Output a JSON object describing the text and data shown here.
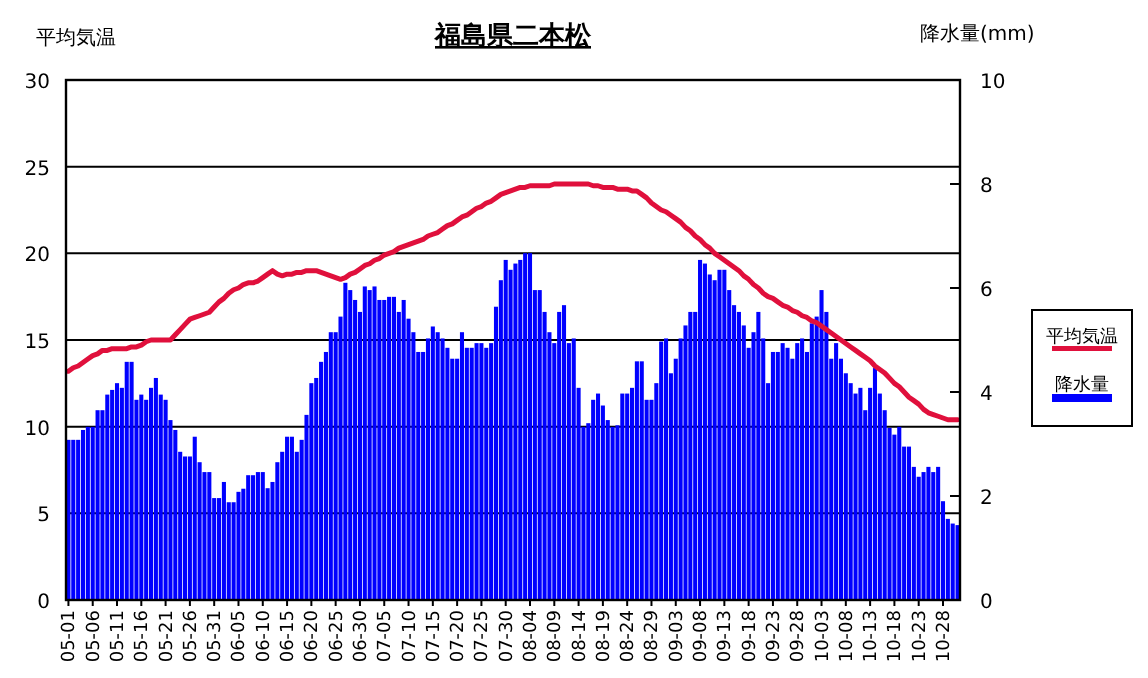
{
  "chart_data": {
    "type": "bar",
    "title": "福島県二本松",
    "ylabel": "平均気温",
    "y2label": "降水量(mm)",
    "categories": [
      "05-01",
      null,
      null,
      null,
      null,
      "05-06",
      null,
      null,
      null,
      null,
      "05-11",
      null,
      null,
      null,
      null,
      "05-16",
      null,
      null,
      null,
      null,
      "05-21",
      null,
      null,
      null,
      null,
      "05-26",
      null,
      null,
      null,
      null,
      "05-31",
      null,
      null,
      null,
      null,
      "06-05",
      null,
      null,
      null,
      null,
      "06-10",
      null,
      null,
      null,
      null,
      "06-15",
      null,
      null,
      null,
      null,
      "06-20",
      null,
      null,
      null,
      null,
      "06-25",
      null,
      null,
      null,
      null,
      "06-30",
      null,
      null,
      null,
      null,
      "07-05",
      null,
      null,
      null,
      null,
      "07-10",
      null,
      null,
      null,
      null,
      "07-15",
      null,
      null,
      null,
      null,
      "07-20",
      null,
      null,
      null,
      null,
      "07-25",
      null,
      null,
      null,
      null,
      "07-30",
      null,
      null,
      null,
      null,
      "08-04",
      null,
      null,
      null,
      null,
      "08-09",
      null,
      null,
      null,
      null,
      "08-14",
      null,
      null,
      null,
      null,
      "08-19",
      null,
      null,
      null,
      null,
      "08-24",
      null,
      null,
      null,
      null,
      "08-29",
      null,
      null,
      null,
      null,
      "09-03",
      null,
      null,
      null,
      null,
      "09-08",
      null,
      null,
      null,
      null,
      "09-13",
      null,
      null,
      null,
      null,
      "09-18",
      null,
      null,
      null,
      null,
      "09-23",
      null,
      null,
      null,
      null,
      "09-28",
      null,
      null,
      null,
      null,
      "10-03",
      null,
      null,
      null,
      null,
      "10-08",
      null,
      null,
      null,
      null,
      "10-13",
      null,
      null,
      null,
      null,
      "10-18",
      null,
      null,
      null,
      null,
      "10-23",
      null,
      null,
      null,
      null,
      "10-28",
      null,
      null,
      null
    ],
    "series": [
      {
        "name": "平均気温",
        "type": "line",
        "color": "#e0103c",
        "values": [
          13.2,
          13.4,
          13.5,
          13.7,
          13.9,
          14.1,
          14.2,
          14.4,
          14.4,
          14.5,
          14.5,
          14.5,
          14.5,
          14.6,
          14.6,
          14.7,
          14.9,
          15.0,
          15.0,
          15.0,
          15.0,
          15.0,
          15.3,
          15.6,
          15.9,
          16.2,
          16.3,
          16.4,
          16.5,
          16.6,
          16.9,
          17.2,
          17.4,
          17.7,
          17.9,
          18.0,
          18.2,
          18.3,
          18.3,
          18.4,
          18.6,
          18.8,
          19.0,
          18.8,
          18.7,
          18.8,
          18.8,
          18.9,
          18.9,
          19.0,
          19.0,
          19.0,
          18.9,
          18.8,
          18.7,
          18.6,
          18.5,
          18.6,
          18.8,
          18.9,
          19.1,
          19.3,
          19.4,
          19.6,
          19.7,
          19.9,
          20.0,
          20.1,
          20.3,
          20.4,
          20.5,
          20.6,
          20.7,
          20.8,
          21.0,
          21.1,
          21.2,
          21.4,
          21.6,
          21.7,
          21.9,
          22.1,
          22.2,
          22.4,
          22.6,
          22.7,
          22.9,
          23.0,
          23.2,
          23.4,
          23.5,
          23.6,
          23.7,
          23.8,
          23.8,
          23.9,
          23.9,
          23.9,
          23.9,
          23.9,
          24.0,
          24.0,
          24.0,
          24.0,
          24.0,
          24.0,
          24.0,
          24.0,
          23.9,
          23.9,
          23.8,
          23.8,
          23.8,
          23.7,
          23.7,
          23.7,
          23.6,
          23.6,
          23.4,
          23.2,
          22.9,
          22.7,
          22.5,
          22.4,
          22.2,
          22.0,
          21.8,
          21.5,
          21.3,
          21.0,
          20.8,
          20.5,
          20.3,
          20.0,
          19.8,
          19.6,
          19.4,
          19.2,
          19.0,
          18.7,
          18.5,
          18.2,
          18.0,
          17.7,
          17.5,
          17.4,
          17.2,
          17.0,
          16.9,
          16.7,
          16.6,
          16.4,
          16.3,
          16.1,
          16.0,
          15.8,
          15.6,
          15.4,
          15.2,
          15.0,
          14.8,
          14.6,
          14.4,
          14.2,
          14.0,
          13.8,
          13.5,
          13.3,
          13.1,
          12.8,
          12.5,
          12.3,
          12.0,
          11.7,
          11.5,
          11.3,
          11.0,
          10.8,
          10.7,
          10.6,
          10.5,
          10.4,
          10.4,
          10.4
        ]
      },
      {
        "name": "降水量",
        "axis": "y2",
        "color": "#0000ff",
        "values": [
          3.08,
          3.08,
          3.08,
          3.27,
          3.33,
          3.33,
          3.65,
          3.65,
          3.95,
          4.04,
          4.17,
          4.08,
          4.58,
          4.58,
          3.85,
          3.95,
          3.85,
          4.08,
          4.27,
          3.95,
          3.85,
          3.46,
          3.27,
          2.85,
          2.76,
          2.76,
          3.14,
          2.65,
          2.46,
          2.46,
          1.96,
          1.96,
          2.27,
          1.88,
          1.88,
          2.08,
          2.14,
          2.4,
          2.4,
          2.46,
          2.46,
          2.15,
          2.27,
          2.65,
          2.85,
          3.14,
          3.14,
          2.85,
          3.08,
          3.56,
          4.17,
          4.27,
          4.58,
          4.77,
          5.15,
          5.15,
          5.45,
          6.1,
          5.96,
          5.77,
          5.54,
          6.03,
          5.96,
          6.03,
          5.77,
          5.77,
          5.83,
          5.83,
          5.54,
          5.77,
          5.41,
          5.15,
          4.77,
          4.77,
          5.03,
          5.26,
          5.15,
          5.03,
          4.85,
          4.64,
          4.64,
          5.15,
          4.85,
          4.85,
          4.94,
          4.94,
          4.85,
          4.94,
          5.64,
          6.15,
          6.54,
          6.35,
          6.47,
          6.54,
          6.67,
          6.67,
          5.96,
          5.96,
          5.54,
          5.15,
          4.94,
          5.54,
          5.67,
          4.94,
          5.03,
          4.08,
          3.33,
          3.4,
          3.85,
          3.97,
          3.74,
          3.46,
          3.33,
          3.36,
          3.97,
          3.97,
          4.08,
          4.59,
          4.59,
          3.85,
          3.85,
          4.17,
          4.97,
          5.03,
          4.36,
          4.64,
          5.03,
          5.28,
          5.54,
          5.54,
          6.54,
          6.47,
          6.26,
          6.15,
          6.35,
          6.35,
          5.96,
          5.67,
          5.54,
          5.28,
          4.85,
          5.15,
          5.54,
          5.03,
          4.17,
          4.77,
          4.77,
          4.94,
          4.85,
          4.64,
          4.94,
          5.03,
          4.77,
          5.32,
          5.45,
          5.96,
          5.54,
          4.64,
          4.94,
          4.64,
          4.36,
          4.17,
          3.97,
          4.08,
          3.65,
          4.08,
          4.46,
          3.97,
          3.65,
          3.31,
          3.18,
          3.33,
          2.95,
          2.95,
          2.56,
          2.37,
          2.46,
          2.56,
          2.46,
          2.56,
          1.9,
          1.56,
          1.47,
          1.44
        ]
      }
    ],
    "ylim": [
      0,
      30
    ],
    "yticks": [
      0,
      5,
      10,
      15,
      20,
      25,
      30
    ],
    "y2lim": [
      0,
      10
    ],
    "y2ticks": [
      0,
      2,
      4,
      6,
      8,
      10
    ],
    "grid": "y",
    "legend": "right"
  }
}
